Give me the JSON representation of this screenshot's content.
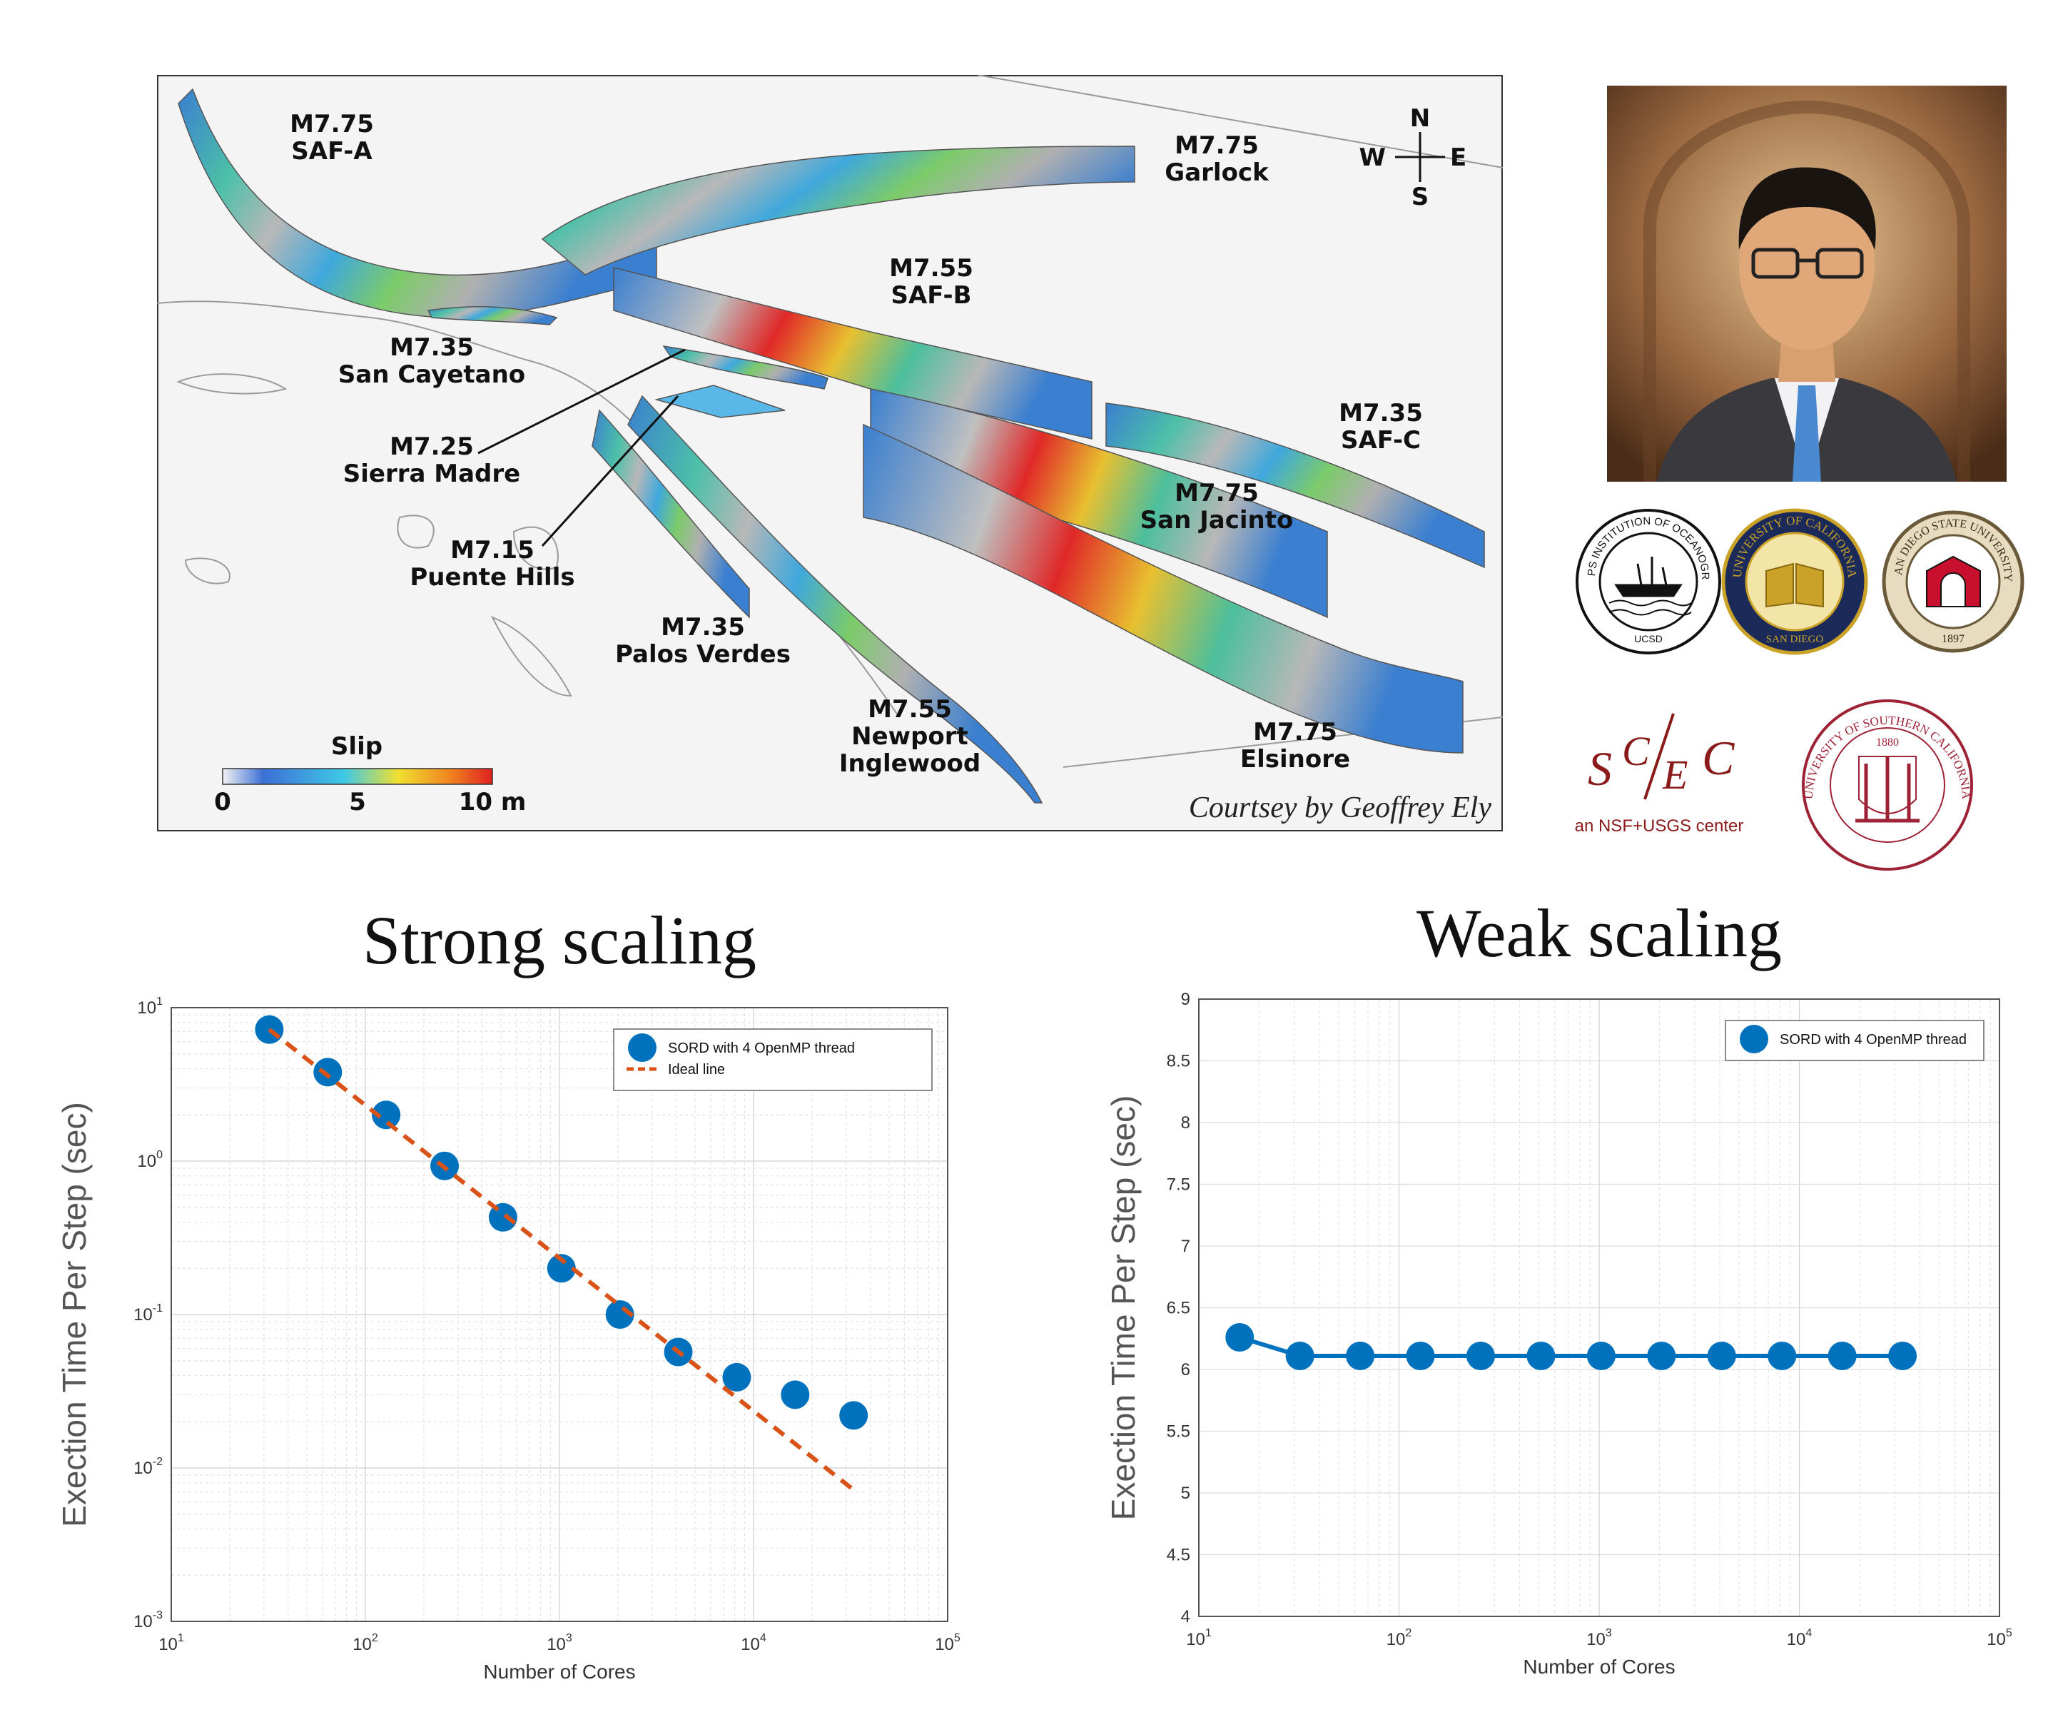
{
  "map": {
    "faults": [
      {
        "magnitude": "M7.75",
        "name": "SAF-A"
      },
      {
        "magnitude": "M7.75",
        "name": "Garlock"
      },
      {
        "magnitude": "M7.55",
        "name": "SAF-B"
      },
      {
        "magnitude": "M7.35",
        "name": "San Cayetano"
      },
      {
        "magnitude": "M7.25",
        "name": "Sierra Madre"
      },
      {
        "magnitude": "M7.15",
        "name": "Puente Hills"
      },
      {
        "magnitude": "M7.35",
        "name": "SAF-C"
      },
      {
        "magnitude": "M7.75",
        "name": "San Jacinto"
      },
      {
        "magnitude": "M7.35",
        "name": "Palos Verdes"
      },
      {
        "magnitude": "M7.55",
        "name": "Newport",
        "name2": "Inglewood"
      },
      {
        "magnitude": "M7.75",
        "name": "Elsinore"
      }
    ],
    "compass": {
      "n": "N",
      "s": "S",
      "e": "E",
      "w": "W"
    },
    "colorbar": {
      "title": "Slip",
      "ticks": [
        "0",
        "5",
        "10 m"
      ]
    },
    "credit": "Courtsey by Geoffrey Ely"
  },
  "logos": {
    "scripps_text": "SCRIPPS INSTITUTION OF OCEANOGRAPHY",
    "scripps_sub": "UCSD",
    "ucsd_text": "UNIVERSITY OF CALIFORNIA",
    "ucsd_sub": "SAN DIEGO",
    "sdsu_text": "SAN DIEGO STATE UNIVERSITY",
    "sdsu_year": "1897",
    "scec_logo": "SCEC",
    "scec_caption": "an NSF+USGS center",
    "usc_text": "UNIVERSITY OF SOUTHERN CALIFORNIA",
    "usc_year": "1880"
  },
  "colors": {
    "series": "#0072bd",
    "ideal": "#d95319",
    "fault_low": "#3d6fd6",
    "fault_mid": "#55c4a0",
    "fault_high": "#e02020",
    "scec_red": "#8b1a1a",
    "usc_red": "#9d2235"
  },
  "chart_data": [
    {
      "type": "scatter",
      "title": "Strong scaling",
      "xlabel": "Number of Cores",
      "ylabel": "Exection Time Per Step (sec)",
      "xscale": "log",
      "yscale": "log",
      "xlim": [
        10,
        100000
      ],
      "ylim": [
        0.001,
        10
      ],
      "x_tick_labels": [
        "10^1",
        "10^2",
        "10^3",
        "10^4",
        "10^5"
      ],
      "y_tick_labels": [
        "10^-3",
        "10^-2",
        "10^-1",
        "10^0",
        "10^1"
      ],
      "grid": true,
      "legend_position": "top-right",
      "series": [
        {
          "name": "SORD with 4 OpenMP thread",
          "style": "markers",
          "x": [
            32,
            64,
            128,
            256,
            512,
            1024,
            2048,
            4096,
            8192,
            16384,
            32768
          ],
          "values": [
            7.2,
            3.8,
            2.0,
            0.93,
            0.43,
            0.2,
            0.1,
            0.057,
            0.039,
            0.03,
            0.022
          ]
        },
        {
          "name": "Ideal line",
          "style": "dashed",
          "x": [
            32,
            32768
          ],
          "values": [
            7.2,
            0.0072
          ]
        }
      ]
    },
    {
      "type": "line",
      "title": "Weak scaling",
      "xlabel": "Number of Cores",
      "ylabel": "Exection Time Per Step (sec)",
      "xscale": "log",
      "yscale": "linear",
      "xlim": [
        10,
        100000
      ],
      "ylim": [
        4,
        9
      ],
      "x_tick_labels": [
        "10^1",
        "10^2",
        "10^3",
        "10^4",
        "10^5"
      ],
      "y_tick_labels": [
        "4",
        "4.5",
        "5",
        "5.5",
        "6",
        "6.5",
        "7",
        "7.5",
        "8",
        "8.5",
        "9"
      ],
      "grid": true,
      "legend_position": "top-right",
      "series": [
        {
          "name": "SORD with 4 OpenMP thread",
          "style": "line-markers",
          "x": [
            16,
            32,
            64,
            128,
            256,
            512,
            1024,
            2048,
            4096,
            8192,
            16384,
            32768
          ],
          "values": [
            6.26,
            6.11,
            6.11,
            6.11,
            6.11,
            6.11,
            6.11,
            6.11,
            6.11,
            6.11,
            6.11,
            6.11
          ]
        }
      ]
    }
  ]
}
